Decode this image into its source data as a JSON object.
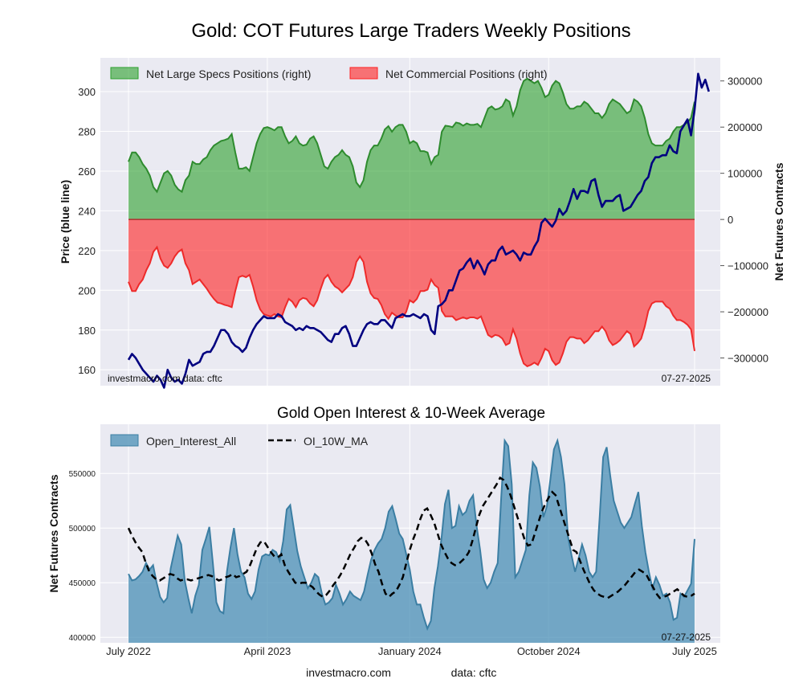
{
  "footer": {
    "site": "investmacro.com",
    "source": "data: cftc"
  },
  "colors": {
    "specs": "#2ca02c",
    "commercial": "#ff2020",
    "price": "#000080",
    "oi": "#4a8fb5",
    "panel_bg": "#eaeaf2"
  },
  "chart_data": [
    {
      "type": "area",
      "title": "Gold: COT Futures Large Traders Weekly Positions",
      "ylabel_left": "Price (blue line)",
      "ylabel_right": "Net Futures Contracts",
      "ylim_left": [
        152,
        317
      ],
      "ylim_right": [
        -360000,
        350000
      ],
      "yticks_left": [
        "160",
        "180",
        "200",
        "220",
        "240",
        "260",
        "280",
        "300"
      ],
      "yticks_right": [
        "-300000",
        "-200000",
        "-100000",
        "0",
        "100000",
        "200000",
        "300000"
      ],
      "watermark": "investmacro.com   data: cftc",
      "date_label": "07-27-2025",
      "x_start": "2022-07-05",
      "weeks": 160,
      "legend": [
        {
          "label": "Net Large Specs Positions (right)"
        },
        {
          "label": "Net Commercial Positions (right)"
        }
      ],
      "series": [
        {
          "name": "Net Large Specs Positions",
          "axis": "right",
          "values": [
            125000,
            145000,
            145000,
            135000,
            120000,
            110000,
            95000,
            70000,
            60000,
            80000,
            100000,
            105000,
            95000,
            75000,
            65000,
            60000,
            85000,
            95000,
            125000,
            120000,
            120000,
            130000,
            135000,
            150000,
            160000,
            165000,
            170000,
            172000,
            175000,
            185000,
            145000,
            110000,
            110000,
            113000,
            105000,
            135000,
            165000,
            185000,
            198000,
            200000,
            197000,
            193000,
            200000,
            200000,
            180000,
            165000,
            170000,
            180000,
            165000,
            160000,
            162000,
            175000,
            180000,
            165000,
            140000,
            115000,
            110000,
            125000,
            135000,
            140000,
            150000,
            140000,
            135000,
            115000,
            80000,
            70000,
            85000,
            125000,
            150000,
            160000,
            160000,
            175000,
            195000,
            202000,
            190000,
            200000,
            205000,
            205000,
            190000,
            165000,
            170000,
            165000,
            148000,
            148000,
            145000,
            120000,
            135000,
            140000,
            190000,
            203000,
            202000,
            200000,
            210000,
            208000,
            203000,
            208000,
            205000,
            205000,
            207000,
            200000,
            220000,
            240000,
            245000,
            238000,
            240000,
            245000,
            260000,
            255000,
            225000,
            245000,
            280000,
            300000,
            305000,
            300000,
            295000,
            300000,
            285000,
            265000,
            270000,
            290000,
            300000,
            295000,
            275000,
            250000,
            240000,
            240000,
            245000,
            245000,
            255000,
            250000,
            240000,
            230000,
            230000,
            220000,
            230000,
            250000,
            260000,
            255000,
            250000,
            240000,
            230000,
            235000,
            260000,
            255000,
            245000,
            220000,
            185000,
            165000,
            160000,
            160000,
            160000,
            170000,
            175000,
            190000,
            200000,
            200000,
            205000,
            210000,
            220000,
            255000
          ]
        },
        {
          "name": "Net Commercial Positions",
          "axis": "right",
          "values": [
            -135000,
            -155000,
            -155000,
            -140000,
            -130000,
            -110000,
            -95000,
            -70000,
            -60000,
            -85000,
            -100000,
            -105000,
            -95000,
            -80000,
            -70000,
            -65000,
            -95000,
            -110000,
            -140000,
            -135000,
            -130000,
            -140000,
            -150000,
            -162000,
            -172000,
            -180000,
            -182000,
            -185000,
            -187000,
            -190000,
            -155000,
            -125000,
            -122000,
            -125000,
            -120000,
            -145000,
            -175000,
            -195000,
            -205000,
            -208000,
            -210000,
            -205000,
            -210000,
            -212000,
            -190000,
            -172000,
            -178000,
            -190000,
            -175000,
            -170000,
            -172000,
            -182000,
            -188000,
            -175000,
            -150000,
            -128000,
            -120000,
            -135000,
            -145000,
            -150000,
            -158000,
            -150000,
            -142000,
            -125000,
            -92000,
            -80000,
            -92000,
            -135000,
            -160000,
            -170000,
            -172000,
            -185000,
            -205000,
            -215000,
            -202000,
            -208000,
            -212000,
            -212000,
            -200000,
            -175000,
            -180000,
            -172000,
            -155000,
            -155000,
            -152000,
            -130000,
            -142000,
            -148000,
            -198000,
            -210000,
            -210000,
            -210000,
            -218000,
            -215000,
            -212000,
            -215000,
            -212000,
            -212000,
            -215000,
            -210000,
            -230000,
            -250000,
            -255000,
            -250000,
            -252000,
            -258000,
            -272000,
            -268000,
            -238000,
            -258000,
            -290000,
            -312000,
            -318000,
            -315000,
            -310000,
            -315000,
            -300000,
            -280000,
            -285000,
            -305000,
            -315000,
            -310000,
            -290000,
            -265000,
            -255000,
            -255000,
            -258000,
            -258000,
            -268000,
            -262000,
            -252000,
            -242000,
            -242000,
            -232000,
            -242000,
            -262000,
            -272000,
            -268000,
            -262000,
            -252000,
            -242000,
            -248000,
            -275000,
            -268000,
            -258000,
            -232000,
            -198000,
            -182000,
            -178000,
            -178000,
            -178000,
            -188000,
            -193000,
            -208000,
            -218000,
            -218000,
            -222000,
            -228000,
            -238000,
            -285000
          ]
        },
        {
          "name": "Gold Price",
          "axis": "left",
          "values": [
            165,
            168,
            166,
            163,
            160,
            158,
            156,
            154,
            157,
            155,
            151,
            160,
            156,
            154,
            155,
            153,
            158,
            165,
            162,
            163,
            164,
            168,
            169,
            169,
            172,
            176,
            180,
            180,
            178,
            174,
            172,
            171,
            169,
            171,
            176,
            180,
            183,
            185,
            187,
            186,
            186,
            186,
            188,
            187,
            184,
            183,
            182,
            180,
            181,
            180,
            182,
            181,
            181,
            180,
            179,
            177,
            175,
            174,
            178,
            178,
            181,
            182,
            178,
            172,
            172,
            176,
            180,
            183,
            184,
            183,
            183,
            185,
            185,
            183,
            181,
            186,
            187,
            188,
            187,
            187,
            188,
            187,
            186,
            188,
            187,
            180,
            178,
            192,
            193,
            195,
            200,
            200,
            205,
            210,
            211,
            214,
            216,
            211,
            215,
            212,
            208,
            213,
            215,
            215,
            220,
            222,
            218,
            219,
            220,
            218,
            215,
            219,
            218,
            218,
            222,
            225,
            234,
            236,
            234,
            232,
            235,
            241,
            238,
            240,
            245,
            251,
            246,
            250,
            250,
            249,
            255,
            256,
            248,
            242,
            245,
            245,
            245,
            247,
            248,
            240,
            241,
            242,
            245,
            248,
            250,
            255,
            257,
            264,
            267,
            267,
            268,
            268,
            273,
            270,
            269,
            280,
            283,
            286,
            278,
            291,
            309,
            302,
            306,
            300
          ]
        }
      ]
    },
    {
      "type": "area",
      "title": "Gold Open Interest & 10-Week Average",
      "ylabel": "Net Futures Contracts",
      "ylim": [
        395000,
        595000
      ],
      "yticks": [
        "400000",
        "450000",
        "500000",
        "550000"
      ],
      "xticks": [
        "July 2022",
        "April 2023",
        "January 2024",
        "October 2024",
        "July 2025"
      ],
      "date_label": "07-27-2025",
      "legend": [
        {
          "label": "Open_Interest_All"
        },
        {
          "label": "OI_10W_MA"
        }
      ],
      "series": [
        {
          "name": "Open_Interest_All",
          "values": [
            458000,
            452000,
            453000,
            456000,
            460000,
            468000,
            462000,
            466000,
            450000,
            437000,
            432000,
            436000,
            463000,
            478000,
            493000,
            485000,
            452000,
            436000,
            422000,
            438000,
            448000,
            480000,
            490000,
            501000,
            468000,
            432000,
            424000,
            422000,
            460000,
            482000,
            500000,
            476000,
            460000,
            455000,
            440000,
            435000,
            442000,
            462000,
            474000,
            476000,
            475000,
            480000,
            478000,
            470000,
            488000,
            517000,
            521000,
            500000,
            479000,
            465000,
            455000,
            445000,
            450000,
            458000,
            455000,
            440000,
            430000,
            432000,
            436000,
            448000,
            440000,
            430000,
            435000,
            442000,
            438000,
            436000,
            434000,
            442000,
            457000,
            471000,
            480000,
            486000,
            490000,
            500000,
            515000,
            520000,
            508000,
            495000,
            490000,
            476000,
            462000,
            442000,
            430000,
            430000,
            418000,
            408000,
            415000,
            445000,
            465000,
            490000,
            522000,
            535000,
            500000,
            502000,
            520000,
            512000,
            515000,
            525000,
            530000,
            502000,
            480000,
            453000,
            445000,
            450000,
            460000,
            468000,
            528000,
            580000,
            575000,
            540000,
            455000,
            460000,
            470000,
            480000,
            530000,
            560000,
            555000,
            538000,
            510000,
            520000,
            545000,
            572000,
            580000,
            565000,
            540000,
            492000,
            475000,
            460000,
            472000,
            485000,
            475000,
            460000,
            455000,
            460000,
            510000,
            565000,
            574000,
            548000,
            525000,
            515000,
            505000,
            500000,
            505000,
            510000,
            522000,
            533000,
            502000,
            478000,
            460000,
            445000,
            455000,
            448000,
            438000,
            440000,
            432000,
            416000,
            418000,
            440000,
            437000,
            443000,
            449000,
            490000
          ]
        },
        {
          "name": "OI_10W_MA",
          "values": [
            500000,
            493000,
            487000,
            482000,
            478000,
            468000,
            460000,
            456000,
            453000,
            452000,
            454000,
            456000,
            458000,
            457000,
            454000,
            452000,
            453000,
            453000,
            452000,
            453000,
            454000,
            455000,
            456000,
            457000,
            456000,
            454000,
            452000,
            453000,
            455000,
            456000,
            458000,
            455000,
            456000,
            458000,
            460000,
            466000,
            474000,
            482000,
            487000,
            488000,
            483000,
            478000,
            474000,
            473000,
            476000,
            466000,
            460000,
            455000,
            450000,
            449000,
            450000,
            450000,
            448000,
            446000,
            442000,
            439000,
            437000,
            439000,
            443000,
            448000,
            452000,
            457000,
            463000,
            470000,
            477000,
            482000,
            488000,
            491000,
            490000,
            485000,
            477000,
            467000,
            460000,
            449000,
            440000,
            437000,
            440000,
            442000,
            448000,
            455000,
            468000,
            480000,
            490000,
            498000,
            508000,
            516000,
            518000,
            512000,
            505000,
            495000,
            485000,
            478000,
            472000,
            468000,
            466000,
            467000,
            470000,
            473000,
            478000,
            488000,
            500000,
            512000,
            520000,
            525000,
            530000,
            535000,
            540000,
            546000,
            544000,
            538000,
            530000,
            520000,
            510000,
            500000,
            490000,
            484000,
            485000,
            495000,
            505000,
            515000,
            522000,
            528000,
            533000,
            530000,
            520000,
            510000,
            500000,
            490000,
            480000,
            478000,
            470000,
            462000,
            455000,
            448000,
            443000,
            440000,
            438000,
            437000,
            436000,
            438000,
            440000,
            442000,
            445000,
            448000,
            452000,
            456000,
            460000,
            462000,
            460000,
            458000,
            452000,
            446000,
            440000,
            436000,
            437000,
            438000,
            440000,
            442000,
            444000,
            441000,
            438000,
            437000,
            438000,
            440000
          ]
        }
      ]
    }
  ]
}
